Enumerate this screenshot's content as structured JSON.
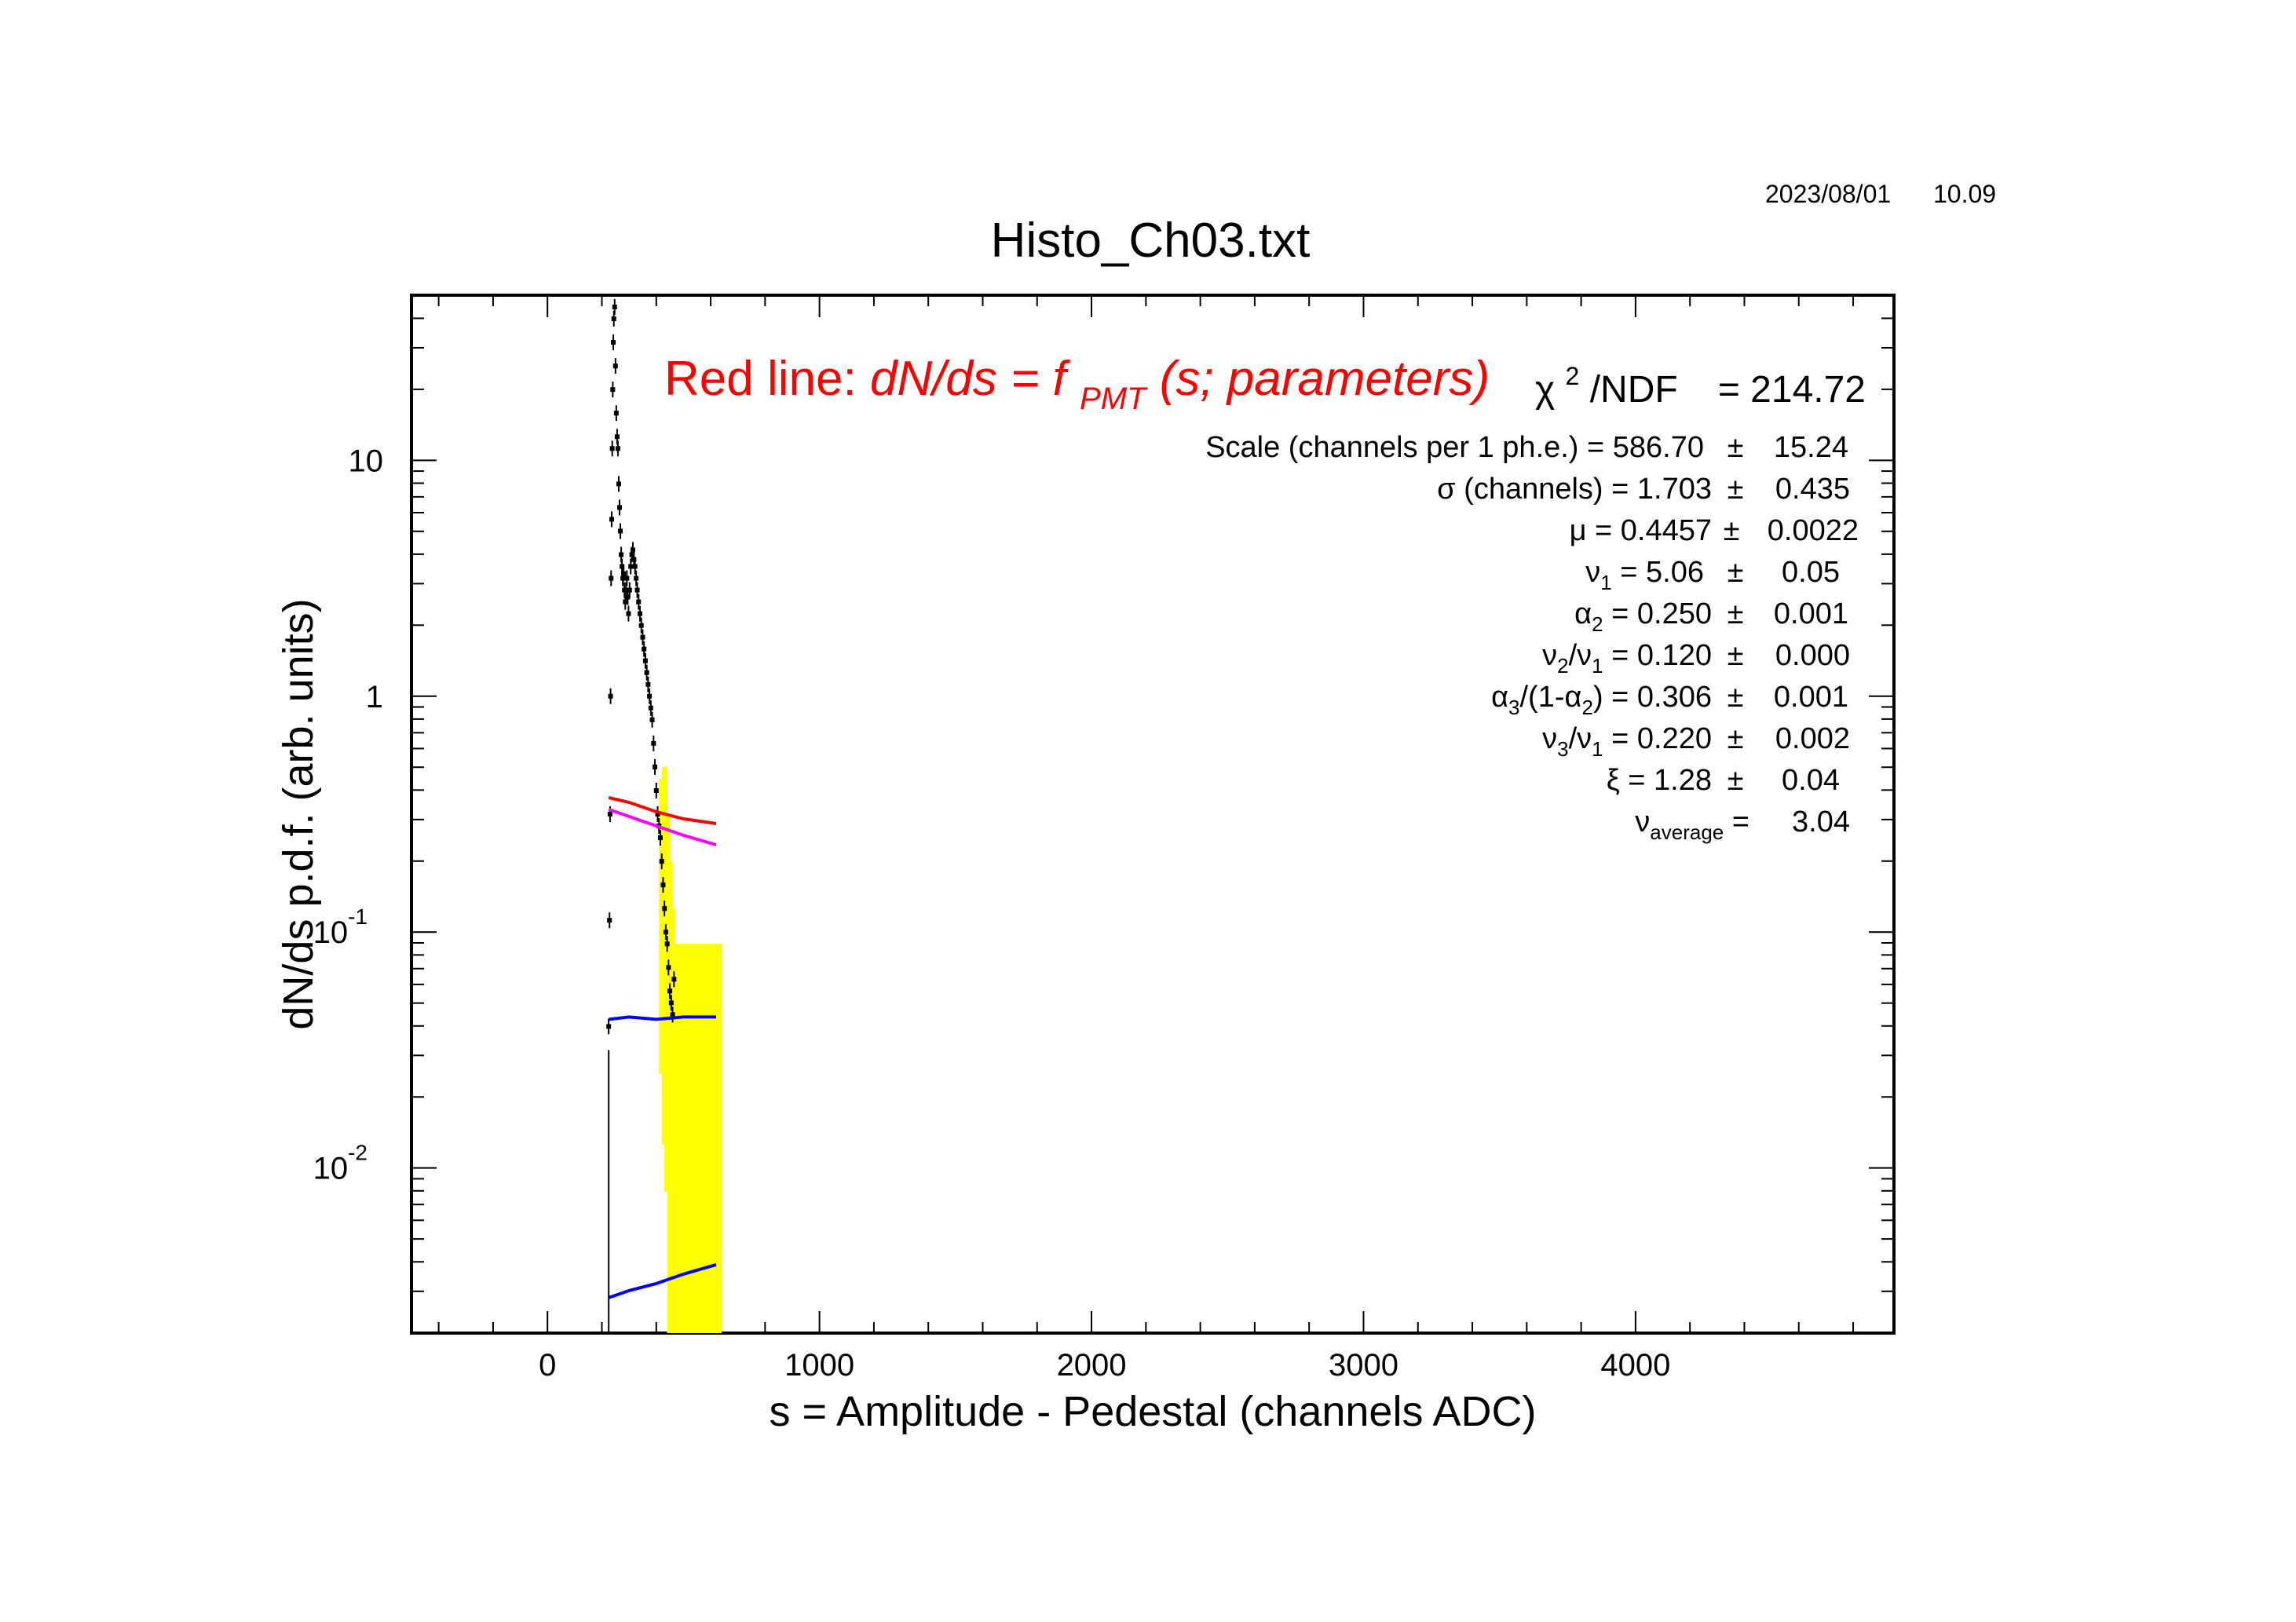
{
  "timestamp": {
    "date": "2023/08/01",
    "time": "10.09"
  },
  "chart_data": {
    "type": "scatter",
    "title": "Histo_Ch03.txt",
    "xlabel": "s = Amplitude - Pedestal (channels ADC)",
    "ylabel": "dN/ds p.d.f. (arb. units)",
    "xlim": [
      -500,
      4950
    ],
    "ylim_log10": [
      -2.7,
      1.7
    ],
    "y_scale": "log",
    "grid": false,
    "x_ticks": [
      {
        "value": 0,
        "label": "0"
      },
      {
        "value": 1000,
        "label": "1000"
      },
      {
        "value": 2000,
        "label": "2000"
      },
      {
        "value": 3000,
        "label": "3000"
      },
      {
        "value": 4000,
        "label": "4000"
      }
    ],
    "y_ticks": [
      {
        "log10": -2,
        "base": "10",
        "exp": "-2"
      },
      {
        "log10": -1,
        "base": "10",
        "exp": "-1"
      },
      {
        "log10": 0,
        "base": "1",
        "exp": ""
      },
      {
        "log10": 1,
        "base": "10",
        "exp": ""
      }
    ],
    "annotation": {
      "prefix": "Red line:",
      "formula_main": "dN/ds = f",
      "formula_sub": "PMT",
      "formula_rest": "(s; parameters)",
      "color": "#ff0000"
    },
    "chi2": {
      "symbol": "χ",
      "sup": "2",
      "label": "/NDF",
      "value": "= 214.72"
    },
    "fit_parameters": {
      "scale": {
        "name": "Scale (channels per 1 ph.e.) = 586.70",
        "pm": "±",
        "err": "15.24"
      },
      "sigma": {
        "name": "σ (channels) =  1.703",
        "pm": "±",
        "err": "0.435"
      },
      "mu": {
        "name": "μ  = 0.4457",
        "pm": "±",
        "err": "0.0022"
      },
      "nu1": {
        "sym": "ν",
        "sub": "1",
        "val": " =   5.06",
        "pm": "±",
        "err": "0.05"
      },
      "alpha2": {
        "sym": "α",
        "sub": "2",
        "val": " =  0.250",
        "pm": "±",
        "err": "0.001"
      },
      "nu2nu1": {
        "a": "ν",
        "asub": "2",
        "b": "/ν",
        "bsub": "1",
        "val": " =  0.120",
        "pm": "±",
        "err": "0.000"
      },
      "alpha3": {
        "a": "α",
        "asub": "3",
        "b": "/(1-α",
        "bsub": "2",
        "c": ")",
        "val": " =  0.306",
        "pm": "±",
        "err": "0.001"
      },
      "nu3nu1": {
        "a": "ν",
        "asub": "3",
        "b": "/ν",
        "bsub": "1",
        "val": " =  0.220",
        "pm": "±",
        "err": "0.002"
      },
      "xi": {
        "name": "ξ   =   1.28",
        "pm": "±",
        "err": "0.04"
      },
      "nuavg": {
        "sym": "ν",
        "sub": "average",
        "val": " =",
        "err": "3.04"
      }
    },
    "series": [
      {
        "role": "data-histogram",
        "color": "#000000",
        "error_color": "#ffff00",
        "points": [
          [
            225,
            -1.4
          ],
          [
            228,
            -0.95
          ],
          [
            230,
            -0.5
          ],
          [
            232,
            0
          ],
          [
            234,
            0.5
          ],
          [
            236,
            0.75
          ],
          [
            238,
            1.05
          ],
          [
            240,
            1.3
          ],
          [
            242,
            1.5
          ],
          [
            244,
            1.6
          ],
          [
            247,
            1.65
          ],
          [
            250,
            1.4
          ],
          [
            253,
            1.2
          ],
          [
            256,
            1.1
          ],
          [
            259,
            1.05
          ],
          [
            262,
            0.9
          ],
          [
            265,
            0.8
          ],
          [
            268,
            0.7
          ],
          [
            271,
            0.6
          ],
          [
            274,
            0.55
          ],
          [
            277,
            0.5
          ],
          [
            280,
            0.52
          ],
          [
            283,
            0.45
          ],
          [
            286,
            0.4
          ],
          [
            289,
            0.45
          ],
          [
            292,
            0.5
          ],
          [
            295,
            0.42
          ],
          [
            298,
            0.35
          ],
          [
            302,
            0.45
          ],
          [
            306,
            0.55
          ],
          [
            310,
            0.6
          ],
          [
            314,
            0.62
          ],
          [
            318,
            0.58
          ],
          [
            322,
            0.55
          ],
          [
            326,
            0.5
          ],
          [
            330,
            0.45
          ],
          [
            335,
            0.4
          ],
          [
            340,
            0.35
          ],
          [
            345,
            0.3
          ],
          [
            350,
            0.25
          ],
          [
            355,
            0.2
          ],
          [
            360,
            0.15
          ],
          [
            365,
            0.1
          ],
          [
            370,
            0.05
          ],
          [
            375,
            0
          ],
          [
            380,
            -0.05
          ],
          [
            385,
            -0.1
          ],
          [
            390,
            -0.2
          ],
          [
            395,
            -0.3
          ],
          [
            400,
            -0.4
          ],
          [
            405,
            -0.5
          ],
          [
            410,
            -0.55
          ],
          [
            415,
            -0.6
          ],
          [
            420,
            -0.7
          ],
          [
            425,
            -0.8
          ],
          [
            430,
            -0.9
          ],
          [
            435,
            -1.0
          ],
          [
            440,
            -1.05
          ],
          [
            445,
            -1.15
          ],
          [
            450,
            -1.25
          ],
          [
            455,
            -1.3
          ],
          [
            460,
            -1.35
          ],
          [
            465,
            -1.2
          ]
        ],
        "error_bars": [
          [
            420,
            -1.6,
            -0.35
          ],
          [
            430,
            -1.9,
            -0.3
          ],
          [
            440,
            -2.1,
            -0.5
          ],
          [
            450,
            -2.7,
            -0.7
          ],
          [
            460,
            -2.7,
            -0.9
          ],
          [
            470,
            -2.7,
            -1.05
          ],
          [
            480,
            -2.7,
            -1.05
          ],
          [
            495,
            -2.7,
            -1.05
          ],
          [
            510,
            -2.7,
            -1.05
          ],
          [
            525,
            -2.7,
            -1.05
          ],
          [
            540,
            -2.7,
            -1.05
          ],
          [
            555,
            -2.7,
            -1.05
          ],
          [
            570,
            -2.7,
            -1.05
          ],
          [
            585,
            -2.7,
            -1.05
          ],
          [
            600,
            -2.7,
            -1.05
          ],
          [
            615,
            -2.7,
            -1.05
          ],
          [
            630,
            -2.7,
            -1.05
          ]
        ]
      },
      {
        "role": "fit-total",
        "color": "#ff0000",
        "points": [
          [
            225,
            -0.43
          ],
          [
            300,
            -0.45
          ],
          [
            400,
            -0.49
          ],
          [
            500,
            -0.52
          ],
          [
            620,
            -0.54
          ]
        ]
      },
      {
        "role": "component-magenta",
        "color": "#ff00ff",
        "points": [
          [
            225,
            -0.48
          ],
          [
            300,
            -0.51
          ],
          [
            400,
            -0.55
          ],
          [
            500,
            -0.59
          ],
          [
            620,
            -0.63
          ]
        ]
      },
      {
        "role": "component-blue-1",
        "color": "#0000ff",
        "points": [
          [
            225,
            -1.37
          ],
          [
            300,
            -1.36
          ],
          [
            400,
            -1.37
          ],
          [
            500,
            -1.36
          ],
          [
            620,
            -1.36
          ]
        ]
      },
      {
        "role": "component-blue-2",
        "color": "#0000ff",
        "points": [
          [
            225,
            -2.55
          ],
          [
            300,
            -2.52
          ],
          [
            400,
            -2.49
          ],
          [
            500,
            -2.45
          ],
          [
            620,
            -2.41
          ]
        ]
      },
      {
        "role": "pedestal-line",
        "color": "#000000",
        "points": [
          [
            225,
            -2.7
          ],
          [
            225,
            -1.5
          ]
        ]
      }
    ]
  }
}
